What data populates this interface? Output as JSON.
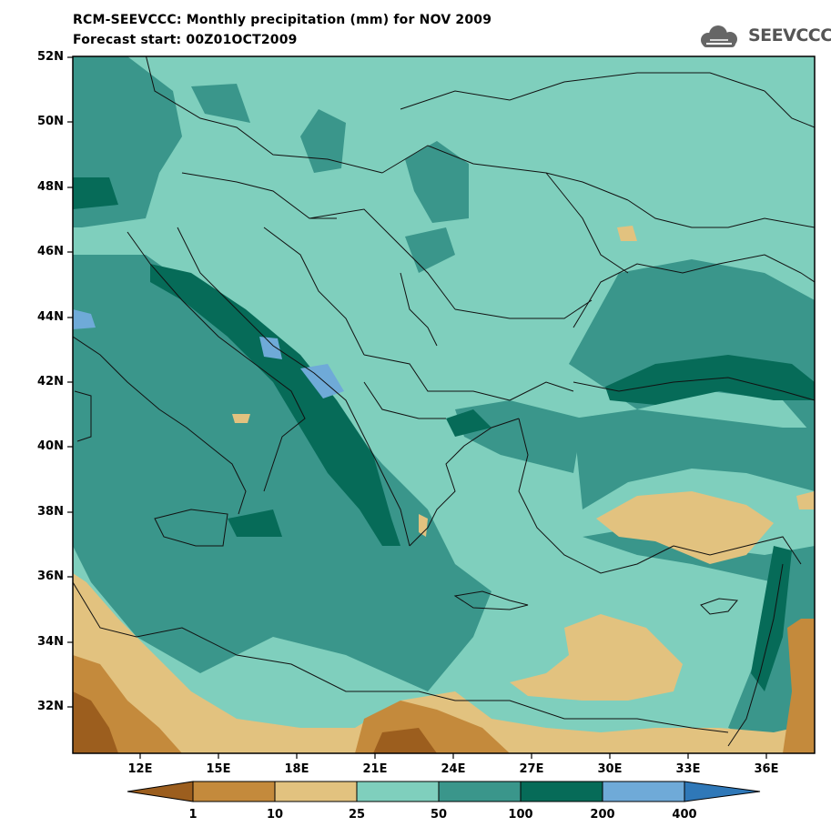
{
  "title_line1": "RCM-SEEVCCC: Monthly precipitation (mm) for NOV 2009",
  "title_line2": "Forecast start: 00Z01OCT2009",
  "logo_text": "SEEVCCC",
  "lat_labels": [
    "52N",
    "50N",
    "48N",
    "46N",
    "44N",
    "42N",
    "40N",
    "38N",
    "36N",
    "34N",
    "32N"
  ],
  "lon_labels": [
    "12E",
    "15E",
    "18E",
    "21E",
    "24E",
    "27E",
    "30E",
    "33E",
    "36E"
  ],
  "colorbar": {
    "thresholds": [
      "1",
      "10",
      "25",
      "50",
      "100",
      "200",
      "400"
    ],
    "colors": [
      "#9c5e1e",
      "#c48a3c",
      "#e2c27f",
      "#7fcfbd",
      "#3a968b",
      "#066b58",
      "#6faad8",
      "#2f78b8"
    ]
  }
}
